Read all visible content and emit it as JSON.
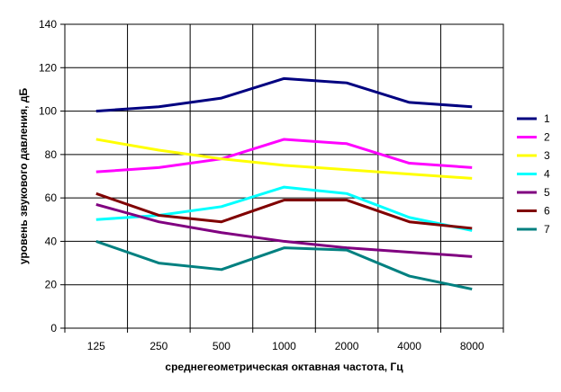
{
  "chart_data": {
    "type": "line",
    "xlabel": "среднегеометрическая октавная частота, Гц",
    "ylabel": "уровень звукового давления, дБ",
    "categories": [
      "125",
      "250",
      "500",
      "1000",
      "2000",
      "4000",
      "8000"
    ],
    "ylim": [
      0,
      140
    ],
    "yticks": [
      0,
      20,
      40,
      60,
      80,
      100,
      120,
      140
    ],
    "grid": true,
    "legend_position": "right",
    "series": [
      {
        "name": "1",
        "color": "#000080",
        "values": [
          100,
          102,
          106,
          115,
          113,
          104,
          102
        ]
      },
      {
        "name": "2",
        "color": "#ff00ff",
        "values": [
          72,
          74,
          78,
          87,
          85,
          76,
          74
        ]
      },
      {
        "name": "3",
        "color": "#ffff00",
        "values": [
          87,
          82,
          78,
          75,
          73,
          71,
          69
        ]
      },
      {
        "name": "4",
        "color": "#00ffff",
        "values": [
          50,
          52,
          56,
          65,
          62,
          51,
          45
        ]
      },
      {
        "name": "5",
        "color": "#800080",
        "values": [
          57,
          49,
          44,
          40,
          37,
          35,
          33
        ]
      },
      {
        "name": "6",
        "color": "#800000",
        "values": [
          62,
          52,
          49,
          59,
          59,
          49,
          46
        ]
      },
      {
        "name": "7",
        "color": "#008080",
        "values": [
          40,
          30,
          27,
          37,
          36,
          24,
          18
        ]
      }
    ]
  }
}
